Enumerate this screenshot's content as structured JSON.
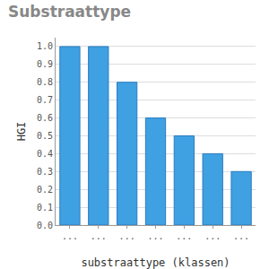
{
  "chart_data": {
    "type": "bar",
    "title": "Substraattype",
    "x_label": "substraattype (klassen)",
    "y_label": "HGI",
    "categories": [
      "...",
      "...",
      "...",
      "...",
      "...",
      "...",
      "..."
    ],
    "values": [
      1.0,
      1.0,
      0.8,
      0.6,
      0.5,
      0.4,
      0.3
    ],
    "color": "#3fa0e2",
    "ylim": [
      0,
      1.05
    ],
    "yticks": [
      {
        "value": 0,
        "label": "0.0"
      },
      0.1,
      0.2,
      0.3,
      0.4,
      0.5,
      0.6,
      0.7,
      0.8,
      0.9,
      {
        "value": 1,
        "label": "1.0"
      }
    ],
    "grid": true
  }
}
